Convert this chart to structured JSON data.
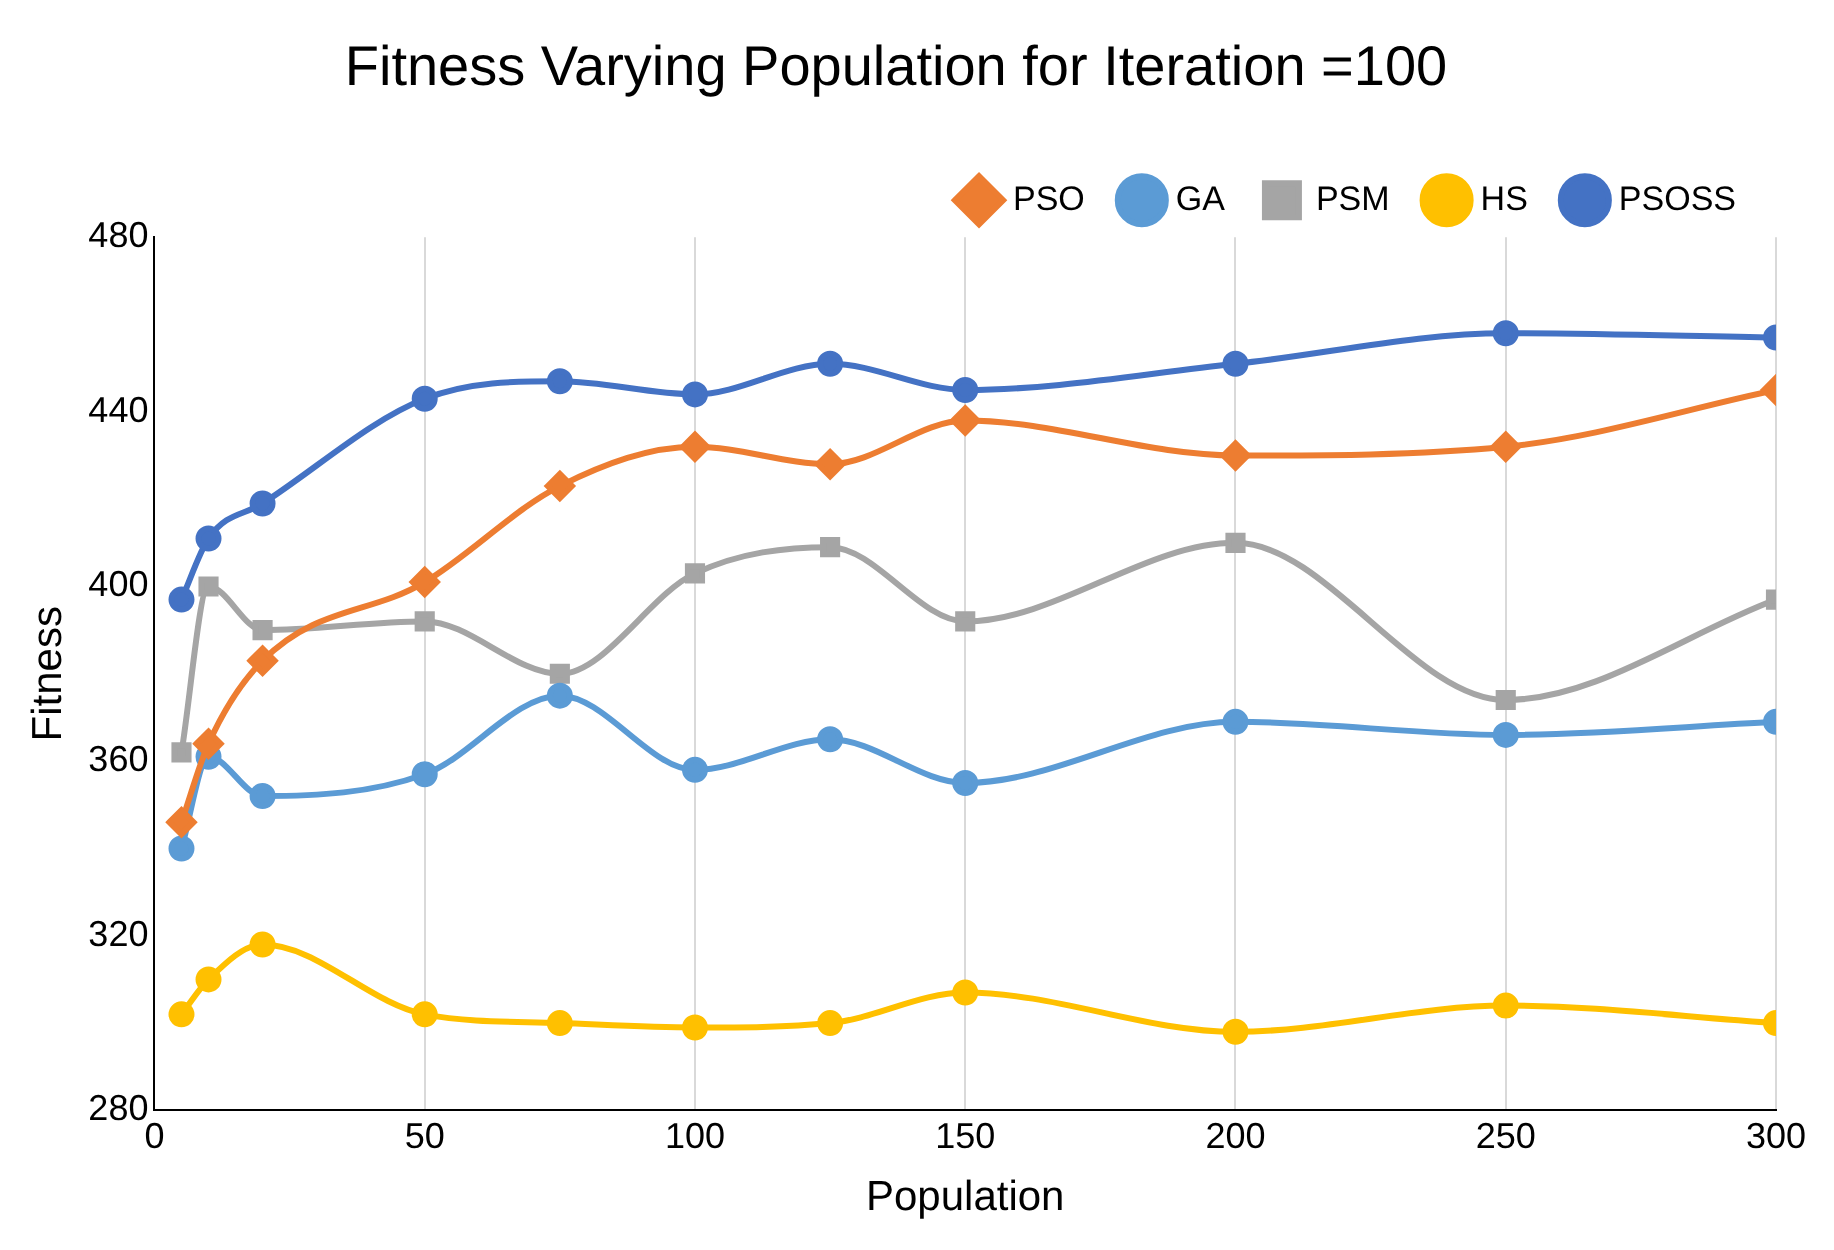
{
  "chart_data": {
    "type": "line",
    "title": "Fitness Varying Population for Iteration =100",
    "xlabel": "Population",
    "ylabel": "Fitness",
    "x": [
      5,
      10,
      20,
      50,
      75,
      100,
      125,
      150,
      200,
      250,
      300
    ],
    "xlim": [
      0,
      300
    ],
    "xticks": [
      0,
      50,
      100,
      150,
      200,
      250,
      300
    ],
    "ylim": [
      280,
      480
    ],
    "yticks": [
      280,
      320,
      360,
      400,
      440,
      480
    ],
    "grid": "x",
    "legend": "top",
    "series": [
      {
        "name": "GA",
        "color": "#5b9bd5",
        "marker": "circle",
        "values": [
          340,
          361,
          352,
          357,
          375,
          358,
          365,
          355,
          369,
          366,
          369
        ]
      },
      {
        "name": "PSO",
        "color": "#ed7d31",
        "marker": "diamond",
        "values": [
          346,
          364,
          383,
          401,
          423,
          432,
          428,
          438,
          430,
          432,
          445
        ]
      },
      {
        "name": "PSM",
        "color": "#a5a5a5",
        "marker": "square",
        "values": [
          362,
          400,
          390,
          392,
          380,
          403,
          409,
          392,
          410,
          374,
          397
        ]
      },
      {
        "name": "HS",
        "color": "#ffc000",
        "marker": "circle",
        "values": [
          302,
          310,
          318,
          302,
          300,
          299,
          300,
          307,
          298,
          304,
          300
        ]
      },
      {
        "name": "PSOSS",
        "color": "#4472c4",
        "marker": "circle",
        "values": [
          397,
          411,
          419,
          443,
          447,
          444,
          451,
          445,
          451,
          458,
          457
        ]
      }
    ]
  }
}
